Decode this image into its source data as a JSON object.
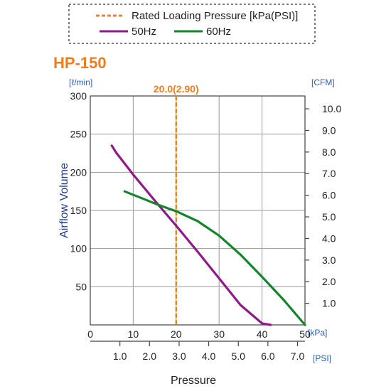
{
  "chart_data": {
    "type": "line",
    "title": "HP-150",
    "legend": {
      "placement": "top",
      "entries": [
        {
          "label": "Rated Loading Pressure [kPa(PSI)]",
          "style": "dashed",
          "color": "#f0861e"
        },
        {
          "label": "50Hz",
          "style": "solid",
          "color": "#8e1a8a"
        },
        {
          "label": "60Hz",
          "style": "solid",
          "color": "#15852c"
        }
      ]
    },
    "ylabel": "Airflow Volume",
    "xlabel": "Pressure",
    "y_unit_left": "[ℓ/min]",
    "y_unit_right": "[CFM]",
    "x_unit_top": "kPa",
    "x_unit_bottom": "[PSI]",
    "xlim": [
      0,
      50
    ],
    "ylim": [
      0,
      300
    ],
    "x_ticks": [
      "0",
      "10",
      "20",
      "30",
      "40",
      "50"
    ],
    "y_ticks": [
      "50",
      "100",
      "150",
      "200",
      "250",
      "300"
    ],
    "y_ticks_right": [
      "1.0",
      "2.0",
      "3.0",
      "4.0",
      "5.0",
      "6.0",
      "7.0",
      "8.0",
      "9.0",
      "10.0"
    ],
    "x_ticks_bottom": [
      "1.0",
      "2.0",
      "3.0",
      "4.0",
      "5.0",
      "6.0",
      "7.0"
    ],
    "grid": true,
    "rated_pressure": {
      "x": 20,
      "label": "20.0(2.90)"
    },
    "series": [
      {
        "name": "50Hz",
        "color": "#8e1a8a",
        "x": [
          5,
          6,
          10,
          15,
          20,
          25,
          30,
          35,
          40,
          42
        ],
        "y": [
          235,
          226,
          197,
          163,
          130,
          96,
          61,
          26,
          2,
          0
        ]
      },
      {
        "name": "60Hz",
        "color": "#15852c",
        "x": [
          8,
          12,
          16,
          20,
          25,
          30,
          35,
          40,
          45,
          50
        ],
        "y": [
          175,
          166,
          157,
          149,
          136,
          117,
          92,
          63,
          33,
          0
        ]
      }
    ]
  }
}
